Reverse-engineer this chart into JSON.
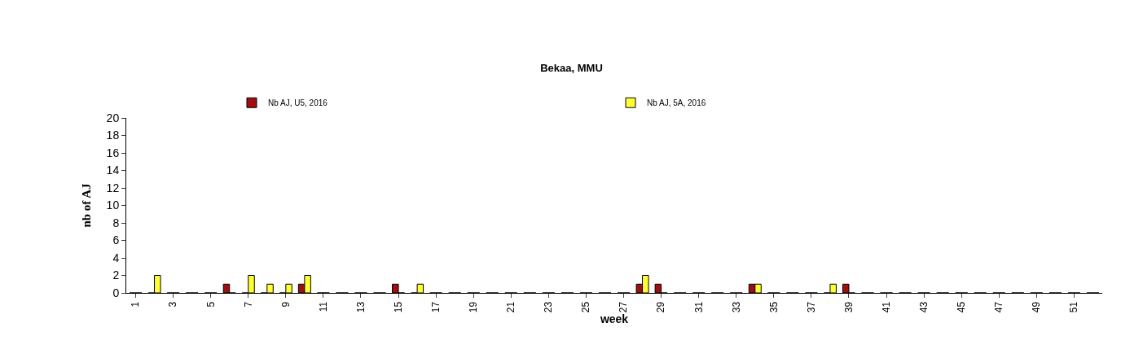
{
  "chart_data": {
    "type": "bar",
    "title": "Bekaa, MMU",
    "xlabel": "week",
    "ylabel": "nb of AJ",
    "categories": [
      "1",
      null,
      "3",
      null,
      "5",
      null,
      "7",
      null,
      "9",
      null,
      "11",
      null,
      "13",
      null,
      "15",
      null,
      "17",
      null,
      "19",
      null,
      "21",
      null,
      "23",
      null,
      "25",
      null,
      "27",
      null,
      "29",
      null,
      "31",
      null,
      "33",
      null,
      "35",
      null,
      "37",
      null,
      "39",
      null,
      "41",
      null,
      "43",
      null,
      "45",
      null,
      "47",
      null,
      "49",
      null,
      "51",
      null
    ],
    "series": [
      {
        "name": "Nb AJ, U5, 2016",
        "color": "#a00f0f",
        "values": [
          0,
          0,
          0,
          0,
          0,
          1,
          0,
          0,
          0,
          1,
          0,
          0,
          0,
          0,
          1,
          0,
          0,
          0,
          0,
          0,
          0,
          0,
          0,
          0,
          0,
          0,
          0,
          1,
          1,
          0,
          0,
          0,
          0,
          1,
          0,
          0,
          0,
          0,
          1,
          0,
          0,
          0,
          0,
          0,
          0,
          0,
          0,
          0,
          0,
          0,
          0,
          0
        ]
      },
      {
        "name": "Nb AJ, 5A, 2016",
        "color": "#ffff33",
        "values": [
          0,
          2,
          0,
          0,
          0,
          0,
          2,
          1,
          1,
          2,
          0,
          0,
          0,
          0,
          0,
          1,
          0,
          0,
          0,
          0,
          0,
          0,
          0,
          0,
          0,
          0,
          0,
          2,
          0,
          0,
          0,
          0,
          0,
          1,
          0,
          0,
          0,
          1,
          0,
          0,
          0,
          0,
          0,
          0,
          0,
          0,
          0,
          0,
          0,
          0,
          0,
          0
        ]
      }
    ],
    "ylim": [
      0,
      20
    ],
    "yticks": [
      0,
      2,
      4,
      6,
      8,
      10,
      12,
      14,
      16,
      18,
      20
    ],
    "grid": false,
    "legend": "top"
  }
}
